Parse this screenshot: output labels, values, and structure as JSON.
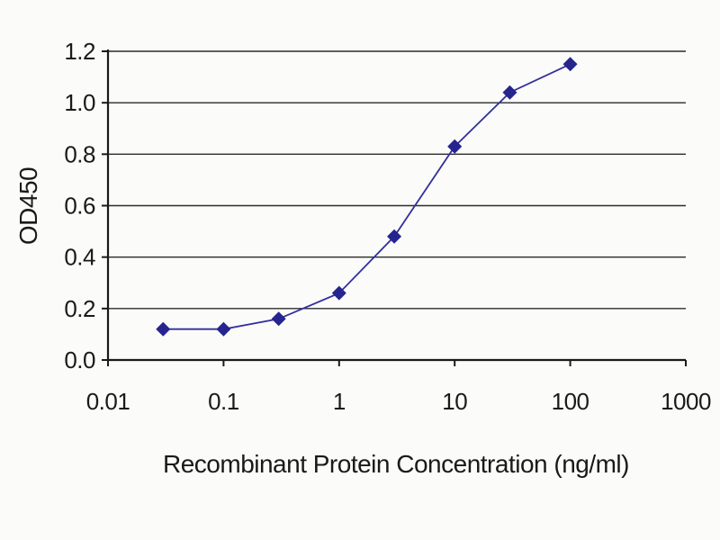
{
  "chart_data": {
    "type": "line",
    "title": "",
    "xlabel": "Recombinant Protein Concentration (ng/ml)",
    "ylabel": "OD450",
    "x_scale": "log",
    "xlim": [
      0.01,
      1000
    ],
    "ylim": [
      0,
      1.2
    ],
    "x": [
      0.03,
      0.1,
      0.3,
      1,
      3,
      10,
      30,
      100
    ],
    "y": [
      0.12,
      0.12,
      0.16,
      0.26,
      0.48,
      0.83,
      1.04,
      1.15
    ],
    "x_ticks": [
      0.01,
      0.1,
      1,
      10,
      100,
      1000
    ],
    "x_tick_labels": [
      "0.01",
      "0.1",
      "1",
      "10",
      "100",
      "1000"
    ],
    "y_ticks": [
      0,
      0.2,
      0.4,
      0.6,
      0.8,
      1.0,
      1.2
    ],
    "y_tick_labels": [
      "0.0",
      "0.2",
      "0.4",
      "0.6",
      "0.8",
      "1.0",
      "1.2"
    ],
    "grid": "horizontal",
    "legend": "none",
    "marker": "diamond",
    "colors": {
      "line": "#32309b",
      "marker": "#26248f",
      "grid": "#2b2b2b",
      "axis": "#1a1a1a",
      "text": "#1a1a1a",
      "background": "#fbfbf9"
    }
  }
}
